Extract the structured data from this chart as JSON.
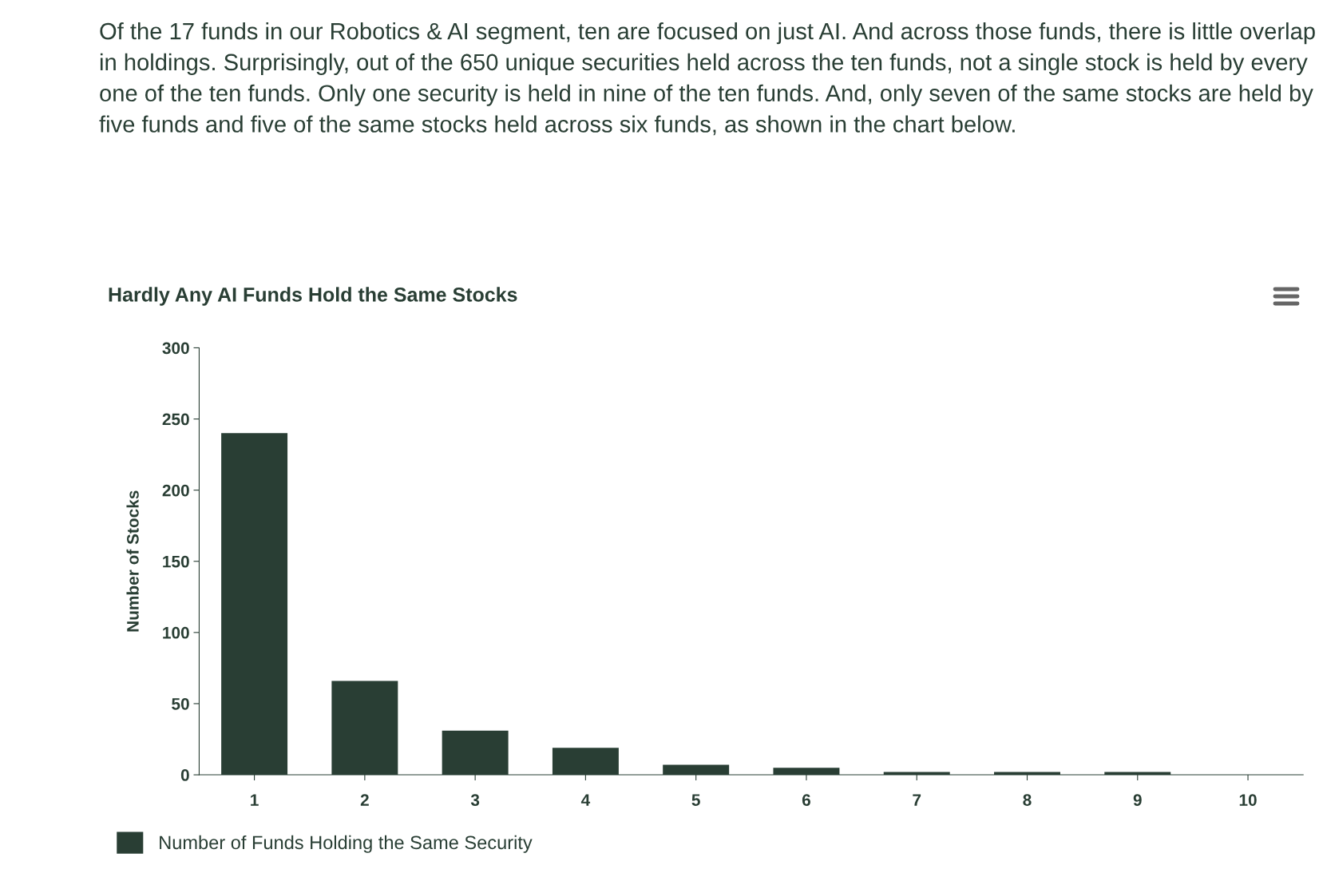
{
  "chart_data": {
    "type": "bar",
    "title": "Hardly Any AI Funds Hold the Same Stocks",
    "annotations": [
      "Of the 17 funds in our Robotics & AI segment, ten are focused on just AI. And across those funds, there is little overlap in holdings. Surprisingly, out of the 650 unique securities held across the ten funds, not a single stock is held by every one of the ten funds. Only one security is held in nine of the ten funds. And, only seven of the same stocks are held by five funds and five of the same stocks held across six funds, as shown in the chart below."
    ],
    "ylabel": "Number of Stocks",
    "categories": [
      "1",
      "2",
      "3",
      "4",
      "5",
      "6",
      "7",
      "8",
      "9",
      "10"
    ],
    "series": [
      {
        "name": "Number of Funds Holding the Same Security",
        "color": "#293e34",
        "values": [
          240,
          66,
          31,
          19,
          7,
          5,
          2,
          2,
          2,
          0
        ]
      }
    ],
    "ylim": [
      0,
      300
    ],
    "yticks": [
      0,
      50,
      100,
      150,
      200,
      250,
      300
    ],
    "grid": false,
    "legend": "bottom left"
  }
}
